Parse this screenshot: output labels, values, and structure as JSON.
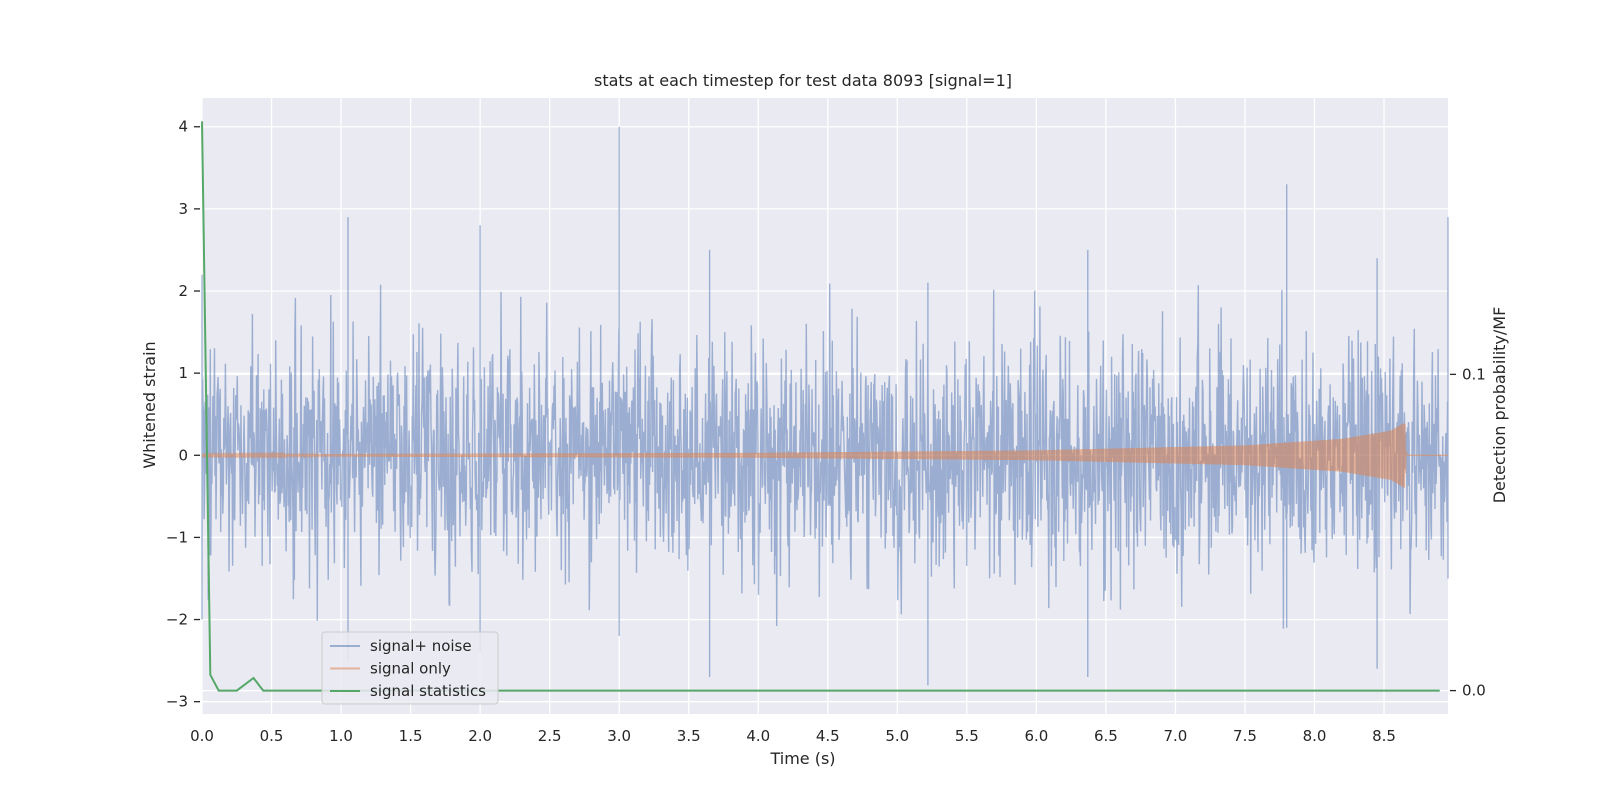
{
  "chart_data": {
    "type": "line",
    "title": "stats at each timestep for test data 8093 [signal=1]",
    "xlabel": "Time (s)",
    "ylabel": "Whitened strain",
    "y2label": "Detection probability/MF",
    "xlim": [
      0.0,
      8.96
    ],
    "ylim": [
      -3.15,
      4.35
    ],
    "y2lim": [
      -0.0074,
      0.1874
    ],
    "x_ticks": [
      0.0,
      0.5,
      1.0,
      1.5,
      2.0,
      2.5,
      3.0,
      3.5,
      4.0,
      4.5,
      5.0,
      5.5,
      6.0,
      6.5,
      7.0,
      7.5,
      8.0,
      8.5
    ],
    "x_tick_labels": [
      "0.0",
      "0.5",
      "1.0",
      "1.5",
      "2.0",
      "2.5",
      "3.0",
      "3.5",
      "4.0",
      "4.5",
      "5.0",
      "5.5",
      "6.0",
      "6.5",
      "7.0",
      "7.5",
      "8.0",
      "8.5"
    ],
    "y_ticks": [
      4,
      3,
      2,
      1,
      0,
      -1,
      -2,
      -3
    ],
    "y_tick_labels": [
      "4",
      "3",
      "2",
      "1",
      "0",
      "−1",
      "−2",
      "−3"
    ],
    "y2_ticks": [
      0.1,
      0.0
    ],
    "y2_tick_labels": [
      "0.1",
      "0.0"
    ],
    "grid": true,
    "legend_position": "lower-left",
    "series": [
      {
        "name": "signal+ noise",
        "color": "#4c72b0",
        "opacity": 0.5,
        "axis": "left",
        "description": "dense noisy strain sampled across 0.0-8.96 s, mostly within ±2 with spikes",
        "envelope_points": [
          {
            "x": 0.0,
            "min": -2.0,
            "max": 2.2
          },
          {
            "x": 1.05,
            "min": -2.5,
            "max": 2.9
          },
          {
            "x": 2.0,
            "min": -2.4,
            "max": 2.8
          },
          {
            "x": 3.0,
            "min": -2.2,
            "max": 4.0
          },
          {
            "x": 3.65,
            "min": -2.7,
            "max": 2.5
          },
          {
            "x": 5.22,
            "min": -2.8,
            "max": 2.1
          },
          {
            "x": 6.37,
            "min": -2.7,
            "max": 2.5
          },
          {
            "x": 7.8,
            "min": -2.1,
            "max": 3.3
          },
          {
            "x": 8.45,
            "min": -2.6,
            "max": 2.4
          },
          {
            "x": 8.96,
            "min": -1.5,
            "max": 2.9
          }
        ]
      },
      {
        "name": "signal only",
        "color": "#dd8452",
        "opacity": 0.55,
        "axis": "left",
        "description": "chirp signal growing in amplitude, peaking near 8.65 s then zero",
        "amplitude_points": [
          {
            "x": 0.0,
            "amp": 0.01
          },
          {
            "x": 4.0,
            "amp": 0.03
          },
          {
            "x": 6.0,
            "amp": 0.06
          },
          {
            "x": 7.5,
            "amp": 0.12
          },
          {
            "x": 8.2,
            "amp": 0.2
          },
          {
            "x": 8.55,
            "amp": 0.3
          },
          {
            "x": 8.65,
            "amp": 0.4
          },
          {
            "x": 8.66,
            "amp": 0.0
          },
          {
            "x": 8.96,
            "amp": 0.0
          }
        ]
      },
      {
        "name": "signal statistics",
        "color": "#55a868",
        "opacity": 1.0,
        "axis": "right",
        "points": [
          {
            "x": 0.0,
            "y": 0.18
          },
          {
            "x": 0.06,
            "y": 0.005
          },
          {
            "x": 0.12,
            "y": 0.0
          },
          {
            "x": 0.25,
            "y": 0.0
          },
          {
            "x": 0.37,
            "y": 0.004
          },
          {
            "x": 0.44,
            "y": 0.0
          },
          {
            "x": 8.9,
            "y": 0.0
          }
        ]
      }
    ]
  }
}
